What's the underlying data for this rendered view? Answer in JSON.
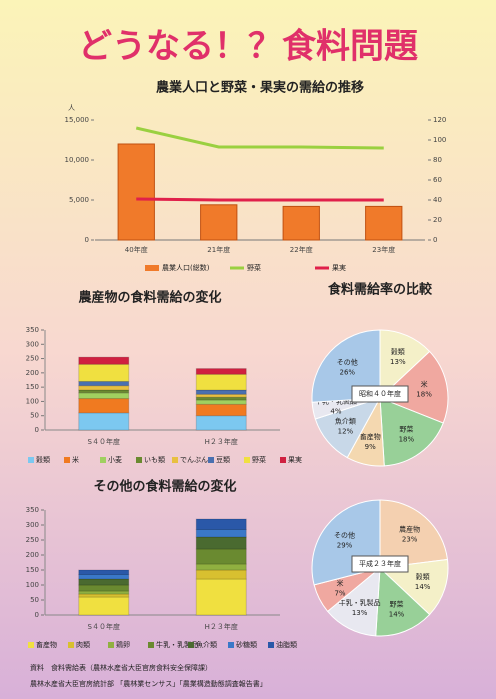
{
  "poster_title": "どうなる！？食料問題",
  "pie_heading": "食料需給率の比較",
  "source": [
    "資料　食料需給表（農林水産省大臣官房食料安全保障課）",
    "農林水産省大臣官房統計部 「農林業センサス」「農業構造動態調査報告書」"
  ],
  "chart_data": [
    {
      "type": "combo",
      "title": "農業人口と野菜・果実の需給の推移",
      "ylabel": "人",
      "categories": [
        "40年度",
        "21年度",
        "22年度",
        "23年度"
      ],
      "ylim": [
        0,
        15000
      ],
      "yticks": [
        0,
        {
          "value": 5000,
          "label": "5,000"
        },
        {
          "value": 10000,
          "label": "10,000"
        },
        {
          "value": 15000,
          "label": "15,000"
        }
      ],
      "y2lim": [
        0,
        120
      ],
      "y2ticks": [
        0,
        20,
        40,
        60,
        80,
        100,
        120
      ],
      "series": [
        {
          "name": "農業人口(総数)",
          "kind": "bar",
          "color": "#f07a2a",
          "values": [
            12000,
            4400,
            4200,
            4200
          ]
        },
        {
          "name": "野菜",
          "kind": "line",
          "axis": "y2",
          "color": "#9ad040",
          "values": [
            112,
            93,
            93,
            92
          ]
        },
        {
          "name": "果実",
          "kind": "line",
          "axis": "y2",
          "color": "#e0204a",
          "values": [
            41,
            40,
            40,
            40
          ]
        }
      ]
    },
    {
      "type": "stacked_bar",
      "title": "農産物の食料需給の変化",
      "categories": [
        "S４０年度",
        "H２３年度"
      ],
      "ylim": [
        0,
        350
      ],
      "yticks": [
        0,
        50,
        100,
        150,
        200,
        250,
        300,
        350
      ],
      "series": [
        {
          "name": "穀類",
          "color": "#7cc8f0",
          "values": [
            60,
            50
          ]
        },
        {
          "name": "米",
          "color": "#f07a20",
          "values": [
            50,
            40
          ]
        },
        {
          "name": "小麦",
          "color": "#a0d060",
          "values": [
            20,
            15
          ]
        },
        {
          "name": "いも類",
          "color": "#6a8a30",
          "values": [
            10,
            10
          ]
        },
        {
          "name": "でんぷん",
          "color": "#e8c040",
          "values": [
            15,
            10
          ]
        },
        {
          "name": "豆類",
          "color": "#4a70b0",
          "values": [
            15,
            15
          ]
        },
        {
          "name": "野菜",
          "color": "#f0e040",
          "values": [
            60,
            55
          ]
        },
        {
          "name": "果実",
          "color": "#d02040",
          "values": [
            25,
            20
          ]
        }
      ]
    },
    {
      "type": "stacked_bar",
      "title": "その他の食料需給の変化",
      "categories": [
        "S４０年度",
        "H２３年度"
      ],
      "ylim": [
        0,
        350
      ],
      "yticks": [
        0,
        50,
        100,
        150,
        200,
        250,
        300,
        350
      ],
      "series": [
        {
          "name": "畜産物",
          "color": "#f0e040",
          "values": [
            60,
            120
          ]
        },
        {
          "name": "肉類",
          "color": "#d8c030",
          "values": [
            10,
            30
          ]
        },
        {
          "name": "鶏卵",
          "color": "#90b040",
          "values": [
            10,
            20
          ]
        },
        {
          "name": "牛乳・乳製品",
          "color": "#6a8a30",
          "values": [
            20,
            50
          ]
        },
        {
          "name": "魚介類",
          "color": "#4a6a30",
          "values": [
            20,
            40
          ]
        },
        {
          "name": "砂糖類",
          "color": "#3a78c8",
          "values": [
            15,
            25
          ]
        },
        {
          "name": "油脂類",
          "color": "#2a58a8",
          "values": [
            15,
            35
          ]
        }
      ]
    },
    {
      "type": "pie",
      "title": "昭和４０年度",
      "categories": [
        "穀類",
        "米",
        "野菜",
        "畜産物",
        "魚介類",
        "牛乳・乳製品",
        "その他"
      ],
      "values": [
        13,
        18,
        18,
        9,
        12,
        4,
        26
      ],
      "value_labels": [
        "13%",
        "18%",
        "18%",
        "9%",
        "12%",
        "4%",
        "26%"
      ],
      "colors": [
        "#f4f0c8",
        "#f0a8a0",
        "#98d098",
        "#f4d8b0",
        "#c8d8e8",
        "#e8e8f0",
        "#a8c8e8"
      ]
    },
    {
      "type": "pie",
      "title": "平成２３年度",
      "categories": [
        "農産物",
        "穀類",
        "野菜",
        "牛乳・乳製品",
        "米",
        "その他"
      ],
      "values": [
        23,
        14,
        14,
        13,
        7,
        29
      ],
      "value_labels": [
        "23%",
        "14%",
        "14%",
        "13%",
        "7%",
        "29%"
      ],
      "colors": [
        "#f4d0b0",
        "#f4f0c8",
        "#98d098",
        "#e8e8f0",
        "#f0a8a0",
        "#a8c8e8"
      ]
    }
  ]
}
